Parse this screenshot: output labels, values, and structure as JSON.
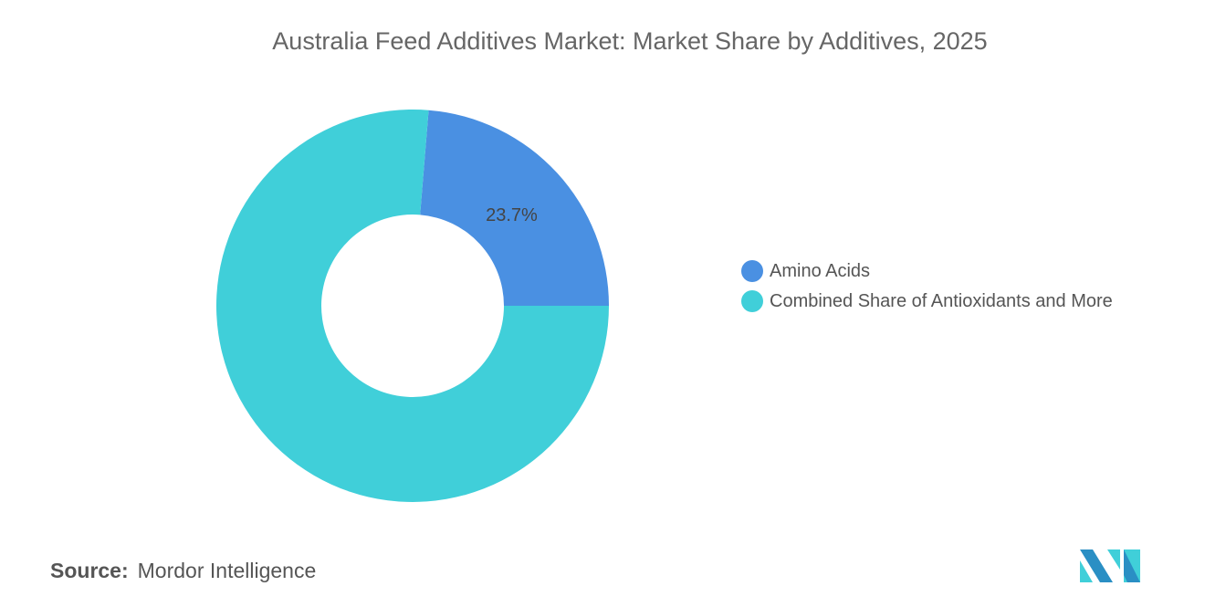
{
  "chart_data": {
    "type": "pie",
    "variant": "donut",
    "title": "Australia Feed Additives Market: Market Share by Additives, 2025",
    "categories": [
      "Amino Acids",
      "Combined Share of Antioxidants and More"
    ],
    "values": [
      23.7,
      76.3
    ],
    "colors": [
      "#4a90e2",
      "#40cfd9"
    ],
    "data_labels": [
      "23.7%",
      ""
    ],
    "legend_position": "right"
  },
  "source": {
    "label": "Source:",
    "text": "Mordor Intelligence"
  },
  "logo": {
    "colors": [
      "#2a8fc4",
      "#40cfd9"
    ]
  }
}
